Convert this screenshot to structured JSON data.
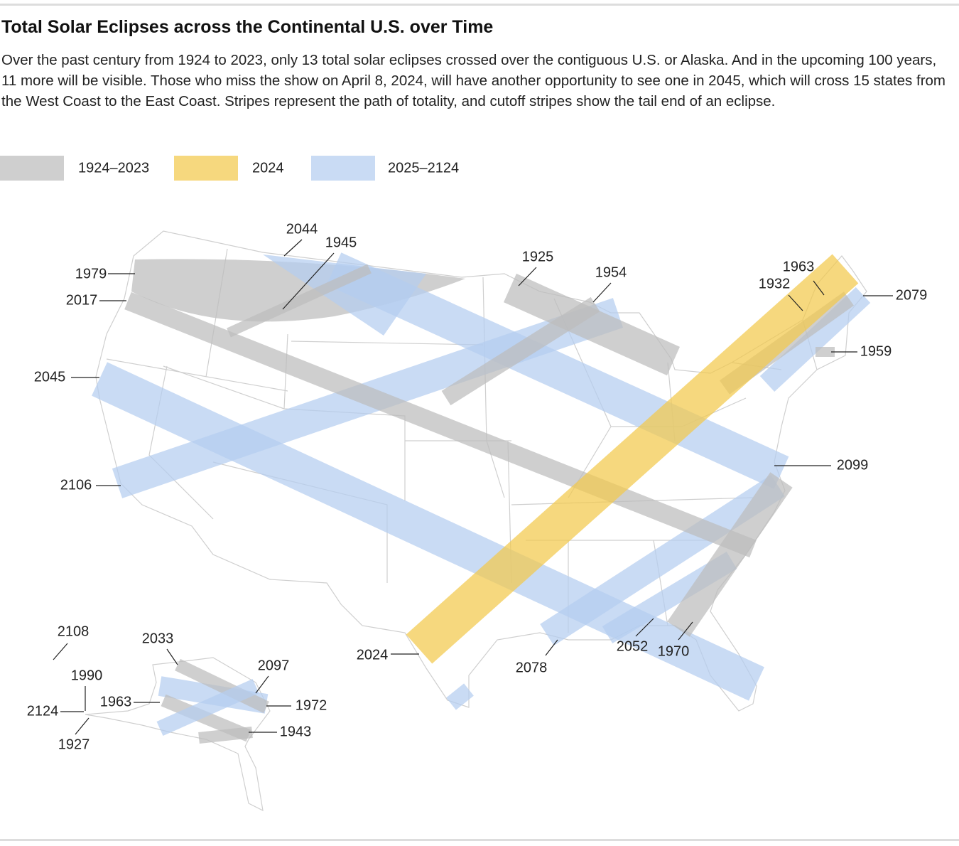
{
  "header": {
    "title": "Total Solar Eclipses across the Continental U.S. over Time",
    "description": "Over the past century from 1924 to 2023, only 13 total solar eclipses crossed over the contiguous U.S. or Alaska. And in the upcoming 100 years, 11 more will be visible. Those who miss the show on April 8, 2024, will have another opportunity to see one in 2045, which will cross 15 states from the West Coast to the East Coast. Stripes represent the path of totality, and cutoff stripes show the tail end of an eclipse."
  },
  "legend": [
    {
      "label": "1924–2023",
      "color": "#bdbdbd"
    },
    {
      "label": "2024",
      "color": "#f2c94c"
    },
    {
      "label": "2025–2124",
      "color": "#b4cdf0"
    }
  ],
  "labels": [
    "2044",
    "1945",
    "1979",
    "2017",
    "1925",
    "1954",
    "1963",
    "1932",
    "2079",
    "1959",
    "2045",
    "2106",
    "2099",
    "2024",
    "2078",
    "2052",
    "1970",
    "2108",
    "1990",
    "2124",
    "1927",
    "2033",
    "2097",
    "1963",
    "1972",
    "1943"
  ]
}
